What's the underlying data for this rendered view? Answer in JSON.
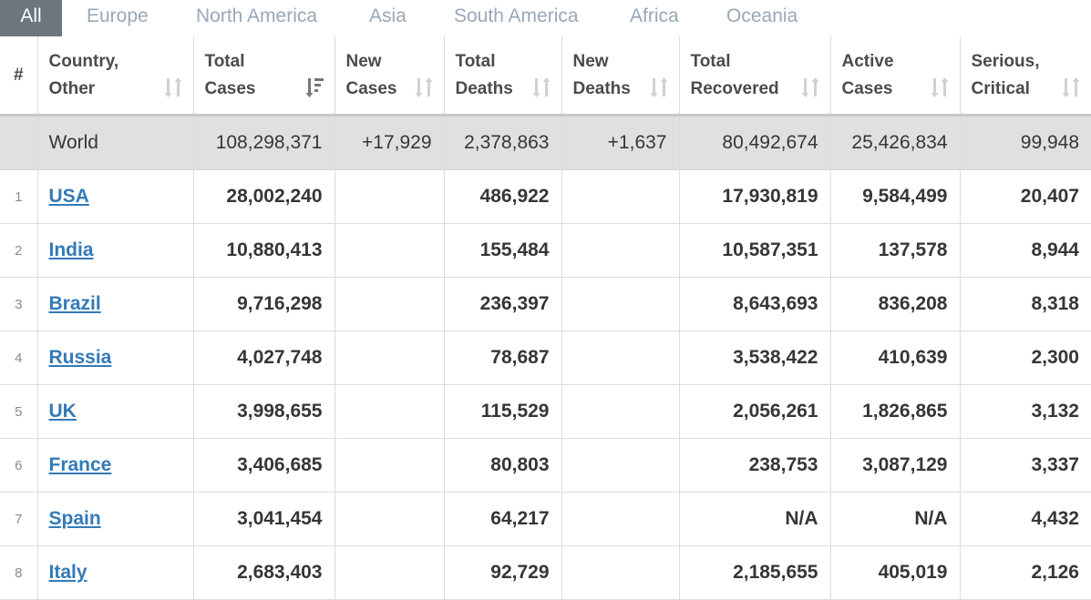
{
  "tabs": [
    {
      "label": "All",
      "active": true
    },
    {
      "label": "Europe"
    },
    {
      "label": "North America"
    },
    {
      "label": "Asia"
    },
    {
      "label": "South America"
    },
    {
      "label": "Africa"
    },
    {
      "label": "Oceania"
    }
  ],
  "headers": {
    "num": "#",
    "country": [
      "Country,",
      "Other"
    ],
    "total_cases": [
      "Total",
      "Cases"
    ],
    "new_cases": [
      "New",
      "Cases"
    ],
    "total_deaths": [
      "Total",
      "Deaths"
    ],
    "new_deaths": [
      "New",
      "Deaths"
    ],
    "total_recovered": [
      "Total",
      "Recovered"
    ],
    "active_cases": [
      "Active",
      "Cases"
    ],
    "serious": [
      "Serious,",
      "Critical"
    ]
  },
  "world": {
    "country": "World",
    "total_cases": "108,298,371",
    "new_cases": "+17,929",
    "total_deaths": "2,378,863",
    "new_deaths": "+1,637",
    "total_recovered": "80,492,674",
    "active_cases": "25,426,834",
    "serious": "99,948"
  },
  "rows": [
    {
      "idx": "1",
      "country": "USA",
      "total_cases": "28,002,240",
      "new_cases": "",
      "total_deaths": "486,922",
      "new_deaths": "",
      "total_recovered": "17,930,819",
      "active_cases": "9,584,499",
      "serious": "20,407"
    },
    {
      "idx": "2",
      "country": "India",
      "total_cases": "10,880,413",
      "new_cases": "",
      "total_deaths": "155,484",
      "new_deaths": "",
      "total_recovered": "10,587,351",
      "active_cases": "137,578",
      "serious": "8,944"
    },
    {
      "idx": "3",
      "country": "Brazil",
      "total_cases": "9,716,298",
      "new_cases": "",
      "total_deaths": "236,397",
      "new_deaths": "",
      "total_recovered": "8,643,693",
      "active_cases": "836,208",
      "serious": "8,318"
    },
    {
      "idx": "4",
      "country": "Russia",
      "total_cases": "4,027,748",
      "new_cases": "",
      "total_deaths": "78,687",
      "new_deaths": "",
      "total_recovered": "3,538,422",
      "active_cases": "410,639",
      "serious": "2,300"
    },
    {
      "idx": "5",
      "country": "UK",
      "total_cases": "3,998,655",
      "new_cases": "",
      "total_deaths": "115,529",
      "new_deaths": "",
      "total_recovered": "2,056,261",
      "active_cases": "1,826,865",
      "serious": "3,132"
    },
    {
      "idx": "6",
      "country": "France",
      "total_cases": "3,406,685",
      "new_cases": "",
      "total_deaths": "80,803",
      "new_deaths": "",
      "total_recovered": "238,753",
      "active_cases": "3,087,129",
      "serious": "3,337"
    },
    {
      "idx": "7",
      "country": "Spain",
      "total_cases": "3,041,454",
      "new_cases": "",
      "total_deaths": "64,217",
      "new_deaths": "",
      "total_recovered": "N/A",
      "active_cases": "N/A",
      "serious": "4,432"
    },
    {
      "idx": "8",
      "country": "Italy",
      "total_cases": "2,683,403",
      "new_cases": "",
      "total_deaths": "92,729",
      "new_deaths": "",
      "total_recovered": "2,185,655",
      "active_cases": "405,019",
      "serious": "2,126"
    }
  ],
  "icons": {
    "sort_default": "sort-both-icon",
    "sort_active": "sort-descending-icon"
  },
  "colors": {
    "tab_active_bg": "#6d757d",
    "tab_text": "#9aa8b5",
    "link": "#337ab7",
    "world_row_bg": "#e0e0e0"
  }
}
